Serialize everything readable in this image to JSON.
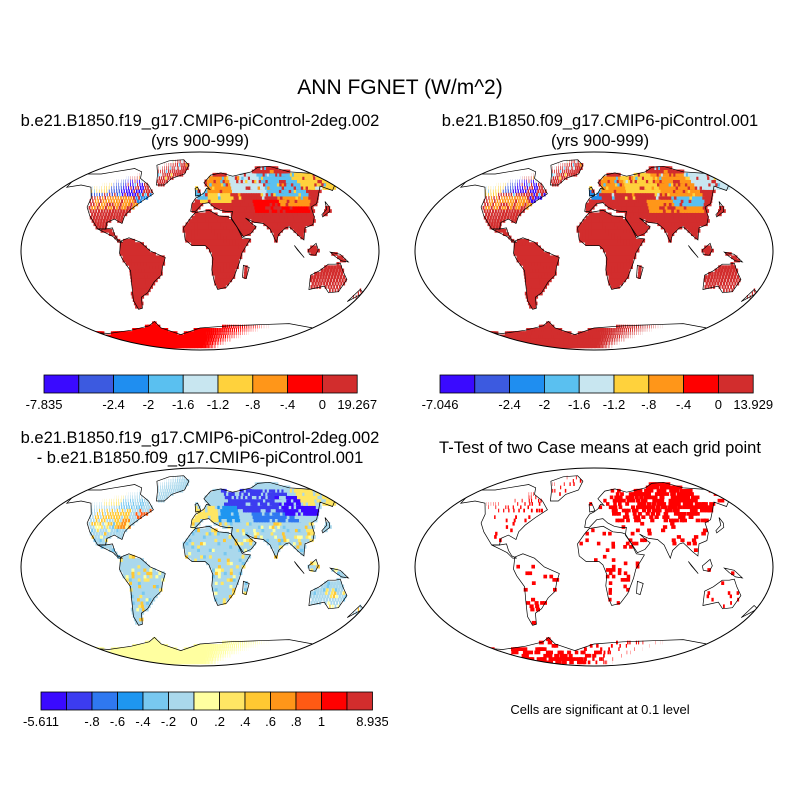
{
  "figure": {
    "title": "ANN FGNET (W/m^2)",
    "significance_note": "Cells are significant at 0.1 level"
  },
  "panels": [
    {
      "name": "case1",
      "title_line1": "b.e21.B1850.f19_g17.CMIP6-piControl-2deg.002",
      "title_line2": "(yrs 900-999)",
      "colorbar": {
        "colors": [
          "#3a0aff",
          "#3c5ae0",
          "#1f8ef0",
          "#5ac0f0",
          "#c8e6f0",
          "#ffd23c",
          "#ff9619",
          "#ff0000",
          "#d22d2d"
        ],
        "labels": [
          "-7.835",
          "",
          "-2.4",
          "-2",
          "-1.6",
          "-1.2",
          "-.8",
          "-.4",
          "0",
          "19.267"
        ]
      }
    },
    {
      "name": "case2",
      "title_line1": "b.e21.B1850.f09_g17.CMIP6-piControl.001",
      "title_line2": "(yrs 900-999)",
      "colorbar": {
        "colors": [
          "#3a0aff",
          "#3c5ae0",
          "#1f8ef0",
          "#5ac0f0",
          "#c8e6f0",
          "#ffd23c",
          "#ff9619",
          "#ff0000",
          "#d22d2d"
        ],
        "labels": [
          "-7.046",
          "",
          "-2.4",
          "-2",
          "-1.6",
          "-1.2",
          "-.8",
          "-.4",
          "0",
          "13.929"
        ]
      }
    },
    {
      "name": "difference",
      "title_line1": "b.e21.B1850.f19_g17.CMIP6-piControl-2deg.002",
      "title_line2": "- b.e21.B1850.f09_g17.CMIP6-piControl.001",
      "colorbar": {
        "colors": [
          "#3a0aff",
          "#3c3cf0",
          "#2f78f0",
          "#1e96f0",
          "#78c8f0",
          "#aad8ec",
          "#ffffa0",
          "#ffe664",
          "#ffc832",
          "#ff9619",
          "#ff5a14",
          "#ff0000",
          "#d22d2d"
        ],
        "labels": [
          "-5.611",
          "",
          "-.8",
          "-.6",
          "-.4",
          "-.2",
          "0",
          ".2",
          ".4",
          ".6",
          ".8",
          "1",
          "",
          "8.935"
        ]
      }
    },
    {
      "name": "ttest",
      "title_line1": "T-Test of two Case means at each grid point",
      "title_line2": ""
    }
  ]
}
